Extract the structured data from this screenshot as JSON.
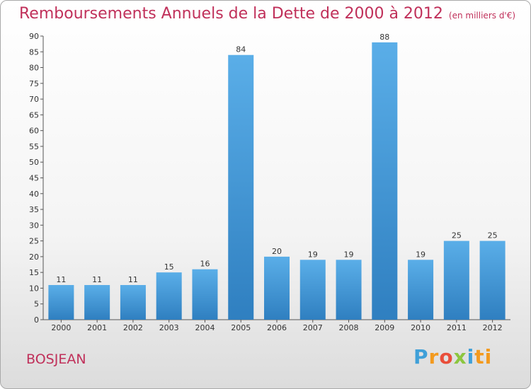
{
  "header": {
    "title": "Remboursements Annuels de la Dette de 2000 à 2012",
    "subtitle": "(en milliers d'€)"
  },
  "commune": "BOSJEAN",
  "logo": {
    "letters": [
      "P",
      "r",
      "o",
      "x",
      "i",
      "ti"
    ]
  },
  "colors": {
    "bar_light": "#5aaee8",
    "bar_dark": "#2f7fc0",
    "title": "#c0305a"
  },
  "chart_data": {
    "type": "bar",
    "title": "Remboursements Annuels de la Dette de 2000 à 2012",
    "categories": [
      "2000",
      "2001",
      "2002",
      "2003",
      "2004",
      "2005",
      "2006",
      "2007",
      "2008",
      "2009",
      "2010",
      "2011",
      "2012"
    ],
    "values": [
      11,
      11,
      11,
      15,
      16,
      84,
      20,
      19,
      19,
      88,
      19,
      25,
      25
    ],
    "ylim": [
      0,
      90
    ],
    "yticks": [
      0,
      5,
      10,
      15,
      20,
      25,
      30,
      35,
      40,
      45,
      50,
      55,
      60,
      65,
      70,
      75,
      80,
      85,
      90
    ],
    "grid": false,
    "legend": "none"
  }
}
